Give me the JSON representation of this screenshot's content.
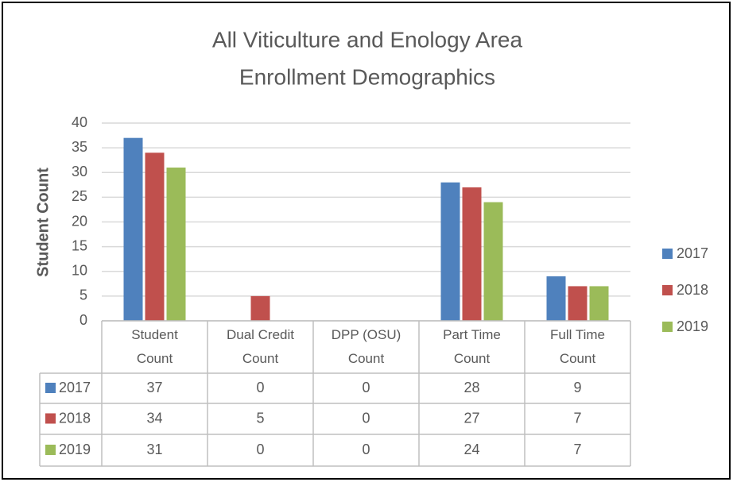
{
  "chart_data": {
    "type": "bar",
    "title": "All Viticulture and Enology Area",
    "subtitle": "Enrollment Demographics",
    "y_label": "Student Count",
    "categories": [
      "Student Count",
      "Dual Credit Count",
      "DPP (OSU) Count",
      "Part Time Count",
      "Full Time Count"
    ],
    "series": [
      {
        "name": "2017",
        "color": "#4f81bd",
        "values": [
          37,
          0,
          0,
          28,
          9
        ]
      },
      {
        "name": "2018",
        "color": "#c0504d",
        "values": [
          34,
          5,
          0,
          27,
          7
        ]
      },
      {
        "name": "2019",
        "color": "#9bbb59",
        "values": [
          31,
          0,
          0,
          24,
          7
        ]
      }
    ],
    "ylim": [
      0,
      40
    ],
    "yticks": [
      0,
      5,
      10,
      15,
      20,
      25,
      30,
      35,
      40
    ],
    "grid": true,
    "legend": "right",
    "data_table": true
  }
}
